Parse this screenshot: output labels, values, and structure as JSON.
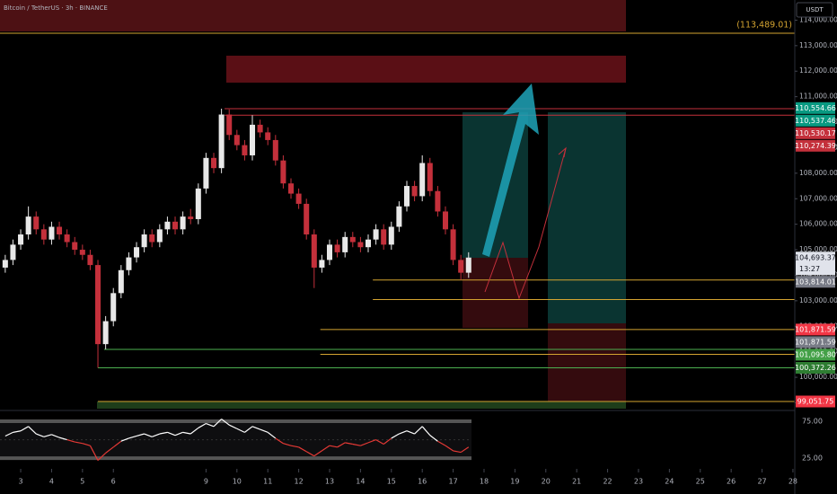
{
  "chart_data": {
    "type": "candlestick",
    "title": "Bitcoin / TetherUS · 3h · BINANCE",
    "currency": "USDT",
    "annotation": "(113,489.01)",
    "annotation_color": "#d4a431",
    "up_color": "#e8e8e8",
    "down_color": "#c4303b",
    "x": [
      2.5,
      2.75,
      3,
      3.25,
      3.5,
      3.75,
      4,
      4.25,
      4.5,
      4.75,
      5,
      5.25,
      5.5,
      5.75,
      6,
      6.25,
      6.5,
      6.75,
      7,
      7.25,
      7.5,
      7.75,
      8,
      8.25,
      8.5,
      8.75,
      9,
      9.25,
      9.5,
      9.75,
      10,
      10.25,
      10.5,
      10.75,
      11,
      11.25,
      11.5,
      11.75,
      12,
      12.25,
      12.5,
      12.75,
      13,
      13.25,
      13.5,
      13.75,
      14,
      14.25,
      14.5,
      14.75,
      15,
      15.25,
      15.5,
      15.75,
      16,
      16.25,
      16.5,
      16.75,
      17,
      17.25,
      17.5
    ],
    "open": [
      104300,
      104600,
      105200,
      105600,
      106300,
      105800,
      105400,
      105900,
      105600,
      105300,
      105000,
      104800,
      104400,
      101300,
      102200,
      103300,
      104200,
      104700,
      105100,
      105600,
      105300,
      105800,
      106100,
      105800,
      106300,
      106200,
      107400,
      108600,
      108200,
      110300,
      109500,
      109100,
      108700,
      109900,
      109600,
      109300,
      108500,
      107600,
      107200,
      106800,
      105600,
      104300,
      104600,
      105200,
      104900,
      105500,
      105300,
      105100,
      105400,
      105800,
      105200,
      105900,
      106700,
      107500,
      107100,
      108400,
      107300,
      106500,
      105800,
      104600,
      104100
    ],
    "high": [
      104800,
      105400,
      105800,
      106700,
      106500,
      106000,
      106100,
      106100,
      105800,
      105500,
      105200,
      105000,
      104600,
      102400,
      103500,
      104400,
      104900,
      105300,
      105800,
      105800,
      106000,
      106300,
      106300,
      106500,
      106600,
      107600,
      108800,
      108800,
      110530,
      110500,
      109700,
      109300,
      110274,
      110100,
      109800,
      109500,
      108700,
      107800,
      107400,
      107000,
      105800,
      104800,
      105400,
      105400,
      105700,
      105700,
      105500,
      105600,
      106000,
      106000,
      106100,
      106900,
      107700,
      107700,
      108700,
      108600,
      107500,
      106700,
      106000,
      104800,
      104900
    ],
    "low": [
      104100,
      104400,
      105000,
      105400,
      105600,
      105200,
      105200,
      105400,
      105100,
      104800,
      104600,
      104200,
      100372,
      101100,
      102000,
      103100,
      104000,
      104500,
      104900,
      105100,
      105100,
      105600,
      105600,
      105600,
      106000,
      106000,
      107200,
      108000,
      108000,
      109300,
      108900,
      108500,
      108500,
      109400,
      109100,
      108300,
      107400,
      107000,
      106600,
      105400,
      103500,
      104100,
      104400,
      104700,
      104700,
      105100,
      104900,
      104900,
      105200,
      105000,
      105000,
      105700,
      106500,
      106900,
      106900,
      107100,
      106300,
      105600,
      104400,
      103814,
      103900
    ],
    "close": [
      104600,
      105200,
      105600,
      106300,
      105800,
      105400,
      105900,
      105600,
      105300,
      105000,
      104800,
      104400,
      101300,
      102200,
      103300,
      104200,
      104700,
      105100,
      105600,
      105300,
      105800,
      106100,
      105800,
      106300,
      106200,
      107400,
      108600,
      108200,
      110300,
      109500,
      109100,
      108700,
      109900,
      109600,
      109300,
      108500,
      107600,
      107200,
      106800,
      105600,
      104300,
      104600,
      105200,
      104900,
      105500,
      105300,
      105100,
      105400,
      105800,
      105200,
      105900,
      106700,
      107500,
      107100,
      108400,
      107300,
      106500,
      105800,
      104600,
      104100,
      104693.37
    ],
    "xlim": [
      2.33,
      28.06
    ],
    "xticks": [
      3,
      4,
      5,
      6,
      9,
      10,
      11,
      12,
      13,
      14,
      15,
      16,
      17,
      18,
      19,
      20,
      21,
      22,
      23,
      24,
      25,
      26,
      27,
      28
    ],
    "ylim": [
      98770,
      114790
    ],
    "yticks": [
      {
        "value": 99000,
        "label": "99,000.00"
      },
      {
        "value": 100000,
        "label": "100,000.00"
      },
      {
        "value": 101000,
        "label": "101,000.00"
      },
      {
        "value": 102000,
        "label": "102,000.00"
      },
      {
        "value": 103000,
        "label": "103,000.00"
      },
      {
        "value": 104000,
        "label": "104,000.00"
      },
      {
        "value": 105000,
        "label": "105,000.00"
      },
      {
        "value": 106000,
        "label": "106,000.00"
      },
      {
        "value": 107000,
        "label": "107,000.00"
      },
      {
        "value": 108000,
        "label": "108,000.00"
      },
      {
        "value": 109000,
        "label": "109,000.00"
      },
      {
        "value": 110000,
        "label": "110,000.00"
      },
      {
        "value": 111000,
        "label": "111,000.00"
      },
      {
        "value": 112000,
        "label": "112,000.00"
      },
      {
        "value": 113000,
        "label": "113,000.00"
      },
      {
        "value": 114000,
        "label": "114,000.00"
      }
    ],
    "levels": [
      {
        "value": 113489.01,
        "color": "#d4a431",
        "from": 2.33
      },
      {
        "value": 110530.17,
        "color": "#c4303b",
        "from": 9.6
      },
      {
        "value": 110274.39,
        "color": "#c4303b",
        "from": 9.6
      },
      {
        "value": 103814.01,
        "color": "#d4a431",
        "from": 14.4
      },
      {
        "value": 103050,
        "color": "#d4a431",
        "from": 14.4
      },
      {
        "value": 101871.59,
        "color": "#d4a431",
        "from": 12.7
      },
      {
        "value": 101095.8,
        "color": "#4caf50",
        "from": 5.7
      },
      {
        "value": 100900,
        "color": "#d4a431",
        "from": 12.7
      },
      {
        "value": 100372.26,
        "color": "#4caf50",
        "from": 5.5
      },
      {
        "value": 99051.75,
        "color": "#d4a431",
        "from": 5.5
      }
    ],
    "price_labels": [
      {
        "value": 110554.66,
        "label": "110,554.66",
        "color": "#089981"
      },
      {
        "value": 110537.46,
        "label": "110,537.46",
        "color": "#089981"
      },
      {
        "value": 110530.17,
        "label": "110,530.17",
        "color": "#c4303b"
      },
      {
        "value": 110274.39,
        "label": "110,274.39",
        "color": "#c4303b"
      },
      {
        "value": 104693.37,
        "label": "104,693.37",
        "color": "#e0e3eb",
        "sub": "13:27"
      },
      {
        "value": 103814.01,
        "label": "103,814.01",
        "color": "#787b86"
      },
      {
        "value": 101871.59,
        "label": "101,871.59",
        "color": "#f23645"
      },
      {
        "value": 101871.59,
        "label": "101,871.59",
        "color": "#787b86"
      },
      {
        "value": 101095.8,
        "label": "101,095.80",
        "color": "#43a047"
      },
      {
        "value": 100372.26,
        "label": "100,372.26",
        "color": "#2e7d32"
      },
      {
        "value": 99051.75,
        "label": "99,051.75",
        "color": "#f23645"
      }
    ],
    "rsi": {
      "type": "line",
      "values": [
        55,
        60,
        62,
        68,
        58,
        54,
        57,
        53,
        50,
        47,
        45,
        42,
        22,
        32,
        40,
        48,
        52,
        55,
        58,
        54,
        58,
        60,
        56,
        60,
        58,
        66,
        72,
        68,
        78,
        70,
        65,
        60,
        68,
        64,
        60,
        52,
        45,
        42,
        40,
        34,
        28,
        35,
        42,
        40,
        46,
        44,
        42,
        46,
        50,
        44,
        52,
        58,
        62,
        58,
        68,
        56,
        48,
        42,
        35,
        33,
        40
      ],
      "ylim": [
        13,
        86
      ],
      "yticks": [
        {
          "value": 75,
          "label": "75.00"
        },
        {
          "value": 25,
          "label": "25.00"
        }
      ],
      "up_color": "#ffffff",
      "down_color": "#e53935"
    }
  }
}
